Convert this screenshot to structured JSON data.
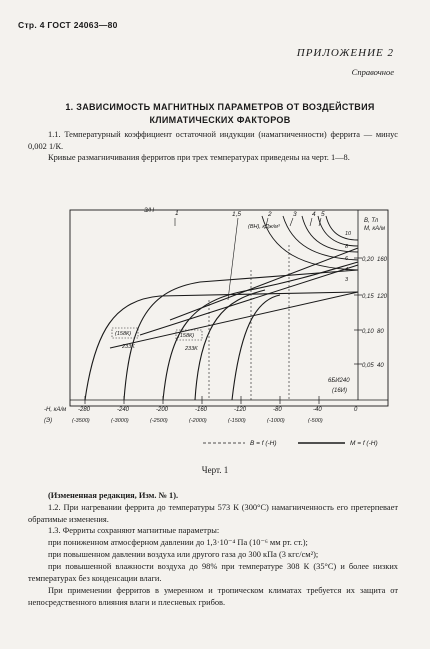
{
  "header": "Стр. 4 ГОСТ 24063—80",
  "appendix": {
    "title": "ПРИЛОЖЕНИЕ 2",
    "subtitle": "Справочное"
  },
  "section_title": "1. ЗАВИСИМОСТЬ МАГНИТНЫХ ПАРАМЕТРОВ ОТ ВОЗДЕЙСТВИЯ КЛИМАТИЧЕСКИХ ФАКТОРОВ",
  "paragraphs": {
    "p1_1": "1.1. Температурный коэффициент остаточной индукции (намагниченности) феррита — минус 0,002 1/К.",
    "p1_1b": "Кривые размагничивания ферритов при трех температурах приведены на черт. 1—8."
  },
  "chart_labels": {
    "left_axis_title": "-H, кА/м",
    "left_axis_units": "(Э)",
    "right_axis_title": "B, Тл",
    "right_axis_title2": "M, кА/м",
    "bh_label": "(BH), кДж/м³",
    "curve_numbers": [
      "3/H",
      "1",
      "1,5",
      "2",
      "3",
      "4",
      "5"
    ],
    "energy_levels": [
      "10",
      "8",
      "6",
      "4",
      "3"
    ],
    "material": "6БИ240",
    "material2": "(16И)",
    "temp_labels": [
      "(158К)",
      "233K",
      "(158К)",
      "233K"
    ],
    "legend": [
      "B = f (-H)",
      "M = f (-H)"
    ]
  },
  "chart_data": {
    "type": "line",
    "x_ticks": [
      "-280",
      "-240",
      "-200",
      "-160",
      "-120",
      "-80",
      "-40",
      "0"
    ],
    "x_ticks_oe": [
      "(-3500)",
      "(-3000)",
      "(-2500)",
      "(-2000)",
      "(-1500)",
      "(-1000)",
      "(-500)",
      ""
    ],
    "y_ticks_b": [
      "0,20",
      "0,15",
      "0,10",
      "0,05"
    ],
    "y_ticks_m": [
      "160",
      "120",
      "80",
      "40"
    ],
    "xlim": [
      -280,
      0
    ],
    "ylim_b": [
      0,
      0.23
    ],
    "series": [
      {
        "name": "B = f (-H)",
        "x": [
          -280,
          -240,
          -200,
          -160,
          -120,
          -80,
          -40,
          0
        ],
        "y": [
          0.0,
          0.03,
          0.07,
          0.1,
          0.13,
          0.15,
          0.17,
          0.19
        ]
      },
      {
        "name": "M = f (-H)",
        "x": [
          -280,
          -240,
          -200,
          -160,
          -120,
          -80,
          -40,
          0
        ],
        "y": [
          0.12,
          0.14,
          0.15,
          0.16,
          0.17,
          0.18,
          0.185,
          0.19
        ]
      }
    ]
  },
  "figure_caption": "Черт. 1",
  "body": {
    "amend": "(Измененная редакция, Изм. № 1).",
    "p1_2": "1.2. При нагревании феррита до температуры 573 К (300°С) намагниченность его претерпевает обратимые изменения.",
    "p1_3": "1.3. Ферриты сохраняют магнитные параметры:",
    "li1": "при пониженном атмосферном давлении до 1,3·10⁻⁴ Па (10⁻⁶ мм рт. ст.);",
    "li2": "при повышенном давлении воздуха или другого газа до 300 кПа (3 кгс/см²);",
    "li3": "при повышенной влажности воздуха до 98% при температуре 308 К (35°С) и более низких температурах без конденсации влаги.",
    "p_last": "При применении ферритов в умеренном и тропическом климатах требуется их защита от непосредственного влияния влаги и плесневых грибов."
  }
}
